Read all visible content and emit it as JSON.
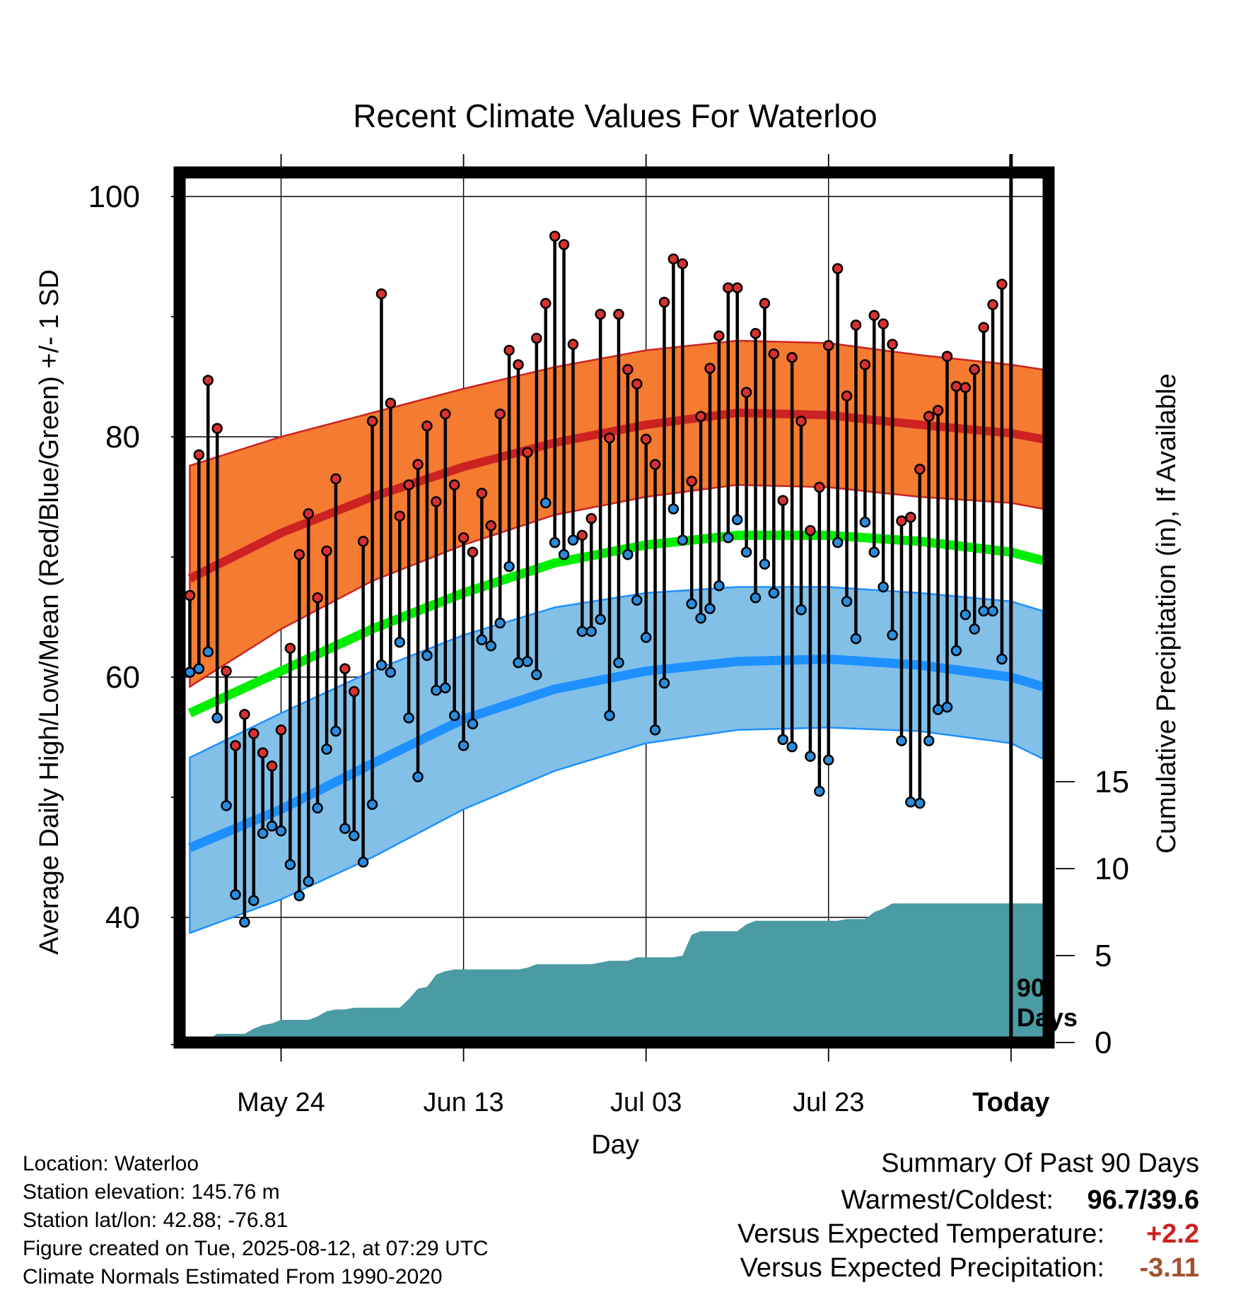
{
  "chart_data": {
    "type": "line",
    "title": "Recent Climate Values For Waterloo",
    "xlabel": "Day",
    "ylabel_left": "Average Daily High/Low/Mean (Red/Blue/Green) +/- 1 SD",
    "ylabel_right": "Cumulative Precipitation (in), If Available",
    "x_tick_labels": [
      "May 24",
      "Jun 13",
      "Jul 03",
      "Jul 23",
      "Today"
    ],
    "x_tick_days": [
      10,
      30,
      50,
      70,
      90
    ],
    "xlim": [
      -0.5,
      93.5
    ],
    "y_left_ticks": [
      "40",
      "60",
      "80",
      "100"
    ],
    "y_left_tick_values": [
      40,
      60,
      80,
      100
    ],
    "ylim_left": [
      30.3,
      102
    ],
    "y_right_ticks": [
      "0",
      "5",
      "10",
      "15"
    ],
    "y_right_tick_values": [
      0,
      5,
      10,
      15
    ],
    "ylim_right": [
      0,
      37
    ],
    "today_marker": {
      "day": 90,
      "label_line1": "90",
      "label_line2": "Days"
    },
    "colors": {
      "high_band": "#f47b30",
      "high_line": "#cc2222",
      "low_band": "#82c0e8",
      "low_line": "#1e90ff",
      "mean_line": "#00ee00",
      "precip": "#4a9ba3",
      "high_marker": "#d93030",
      "low_marker": "#2a8cdc",
      "temp_anomaly": "#cc2222",
      "precip_anomaly": "#a0522d"
    },
    "normals_days": [
      0,
      10,
      20,
      30,
      40,
      50,
      60,
      70,
      80,
      90,
      93.5
    ],
    "normal_high": [
      68.2,
      72.0,
      75.0,
      77.5,
      79.5,
      81.0,
      82.0,
      81.8,
      81.0,
      80.3,
      79.8
    ],
    "normal_high_sd_upper": [
      77.6,
      80.0,
      82.0,
      84.0,
      85.8,
      87.2,
      88.0,
      87.8,
      86.8,
      86.0,
      85.6
    ],
    "normal_high_sd_lower": [
      59.2,
      64.0,
      68.0,
      71.0,
      73.5,
      75.0,
      76.0,
      75.8,
      75.0,
      74.5,
      74.0
    ],
    "normal_mean": [
      57.0,
      60.5,
      64.0,
      67.0,
      69.5,
      71.0,
      71.8,
      71.8,
      71.3,
      70.4,
      69.7
    ],
    "normal_low": [
      45.8,
      49.0,
      52.8,
      56.5,
      59.0,
      60.5,
      61.3,
      61.5,
      61.0,
      60.0,
      59.2
    ],
    "normal_low_sd_upper": [
      53.3,
      57.0,
      60.5,
      63.5,
      65.8,
      67.0,
      67.5,
      67.5,
      67.0,
      66.3,
      65.5
    ],
    "normal_low_sd_lower": [
      38.7,
      41.5,
      45.0,
      49.0,
      52.2,
      54.5,
      55.6,
      55.8,
      55.5,
      54.5,
      53.2
    ],
    "days": [
      0,
      1,
      2,
      3,
      4,
      5,
      6,
      7,
      8,
      9,
      10,
      11,
      12,
      13,
      14,
      15,
      16,
      17,
      18,
      19,
      20,
      21,
      22,
      23,
      24,
      25,
      26,
      27,
      28,
      29,
      30,
      31,
      32,
      33,
      34,
      35,
      36,
      37,
      38,
      39,
      40,
      41,
      42,
      43,
      44,
      45,
      46,
      47,
      48,
      49,
      50,
      51,
      52,
      53,
      54,
      55,
      56,
      57,
      58,
      59,
      60,
      61,
      62,
      63,
      64,
      65,
      66,
      67,
      68,
      69,
      70,
      71,
      72,
      73,
      74,
      75,
      76,
      77,
      78,
      79,
      80,
      81,
      82,
      83,
      84,
      85,
      86,
      87,
      88,
      89
    ],
    "daily_high": [
      66.8,
      78.5,
      84.7,
      80.7,
      60.5,
      54.3,
      56.9,
      55.3,
      53.7,
      52.6,
      55.6,
      62.4,
      70.2,
      73.6,
      66.6,
      70.5,
      76.5,
      60.7,
      58.8,
      71.3,
      81.3,
      91.9,
      82.8,
      73.4,
      76.0,
      77.7,
      80.9,
      74.6,
      81.9,
      76.0,
      71.6,
      70.4,
      75.3,
      72.6,
      81.9,
      87.2,
      86.0,
      78.7,
      88.2,
      91.1,
      96.7,
      96.0,
      87.7,
      71.8,
      73.2,
      90.2,
      79.9,
      90.2,
      85.6,
      84.4,
      79.8,
      77.7,
      91.2,
      94.8,
      94.4,
      76.3,
      81.7,
      85.7,
      88.4,
      92.4,
      92.4,
      83.7,
      88.6,
      91.1,
      86.9,
      74.7,
      86.6,
      81.3,
      72.2,
      75.8,
      87.6,
      94.0,
      83.4,
      89.3,
      86.0,
      90.1,
      89.4,
      87.7,
      73.0,
      73.3,
      77.3,
      81.7,
      82.2,
      86.7,
      84.2,
      84.1,
      85.6,
      89.1,
      91.0,
      92.7
    ],
    "daily_low": [
      60.4,
      60.7,
      62.1,
      56.6,
      49.3,
      41.9,
      39.6,
      41.4,
      47.0,
      47.6,
      47.2,
      44.4,
      41.8,
      43.0,
      49.1,
      54.0,
      55.5,
      47.4,
      46.8,
      44.6,
      49.4,
      61.0,
      60.4,
      62.9,
      56.6,
      51.7,
      61.8,
      58.9,
      59.1,
      56.8,
      54.3,
      56.1,
      63.1,
      62.6,
      64.5,
      69.2,
      61.2,
      61.3,
      60.2,
      74.5,
      71.2,
      70.2,
      71.4,
      63.8,
      63.8,
      64.8,
      56.8,
      61.2,
      70.2,
      66.4,
      63.3,
      55.6,
      59.5,
      74.0,
      71.4,
      66.1,
      64.9,
      65.7,
      67.6,
      71.6,
      73.1,
      70.4,
      66.6,
      69.4,
      67.0,
      54.8,
      54.2,
      65.6,
      53.4,
      50.5,
      53.1,
      71.2,
      66.3,
      63.2,
      72.9,
      70.4,
      67.5,
      63.5,
      54.7,
      49.6,
      49.5,
      54.7,
      57.3,
      57.5,
      62.2,
      65.2,
      64.0,
      65.5,
      65.5,
      61.5
    ],
    "precip_days": [
      2,
      3,
      4,
      5,
      6,
      7,
      8,
      9,
      10,
      11,
      12,
      13,
      14,
      15,
      16,
      17,
      18,
      19,
      20,
      21,
      22,
      23,
      24,
      25,
      26,
      27,
      28,
      29,
      30,
      31,
      32,
      33,
      34,
      35,
      36,
      37,
      38,
      39,
      40,
      41,
      42,
      43,
      44,
      45,
      46,
      47,
      48,
      49,
      50,
      51,
      52,
      53,
      54,
      55,
      56,
      57,
      58,
      59,
      60,
      61,
      62,
      63,
      64,
      65,
      66,
      67,
      68,
      69,
      70,
      71,
      72,
      73,
      74,
      75,
      76,
      77,
      78,
      79,
      80,
      81,
      82,
      83,
      84,
      85,
      86,
      87,
      88,
      89,
      90
    ],
    "cumulative_precip": [
      0.2,
      0.5,
      0.5,
      0.5,
      0.5,
      0.8,
      1.0,
      1.1,
      1.3,
      1.3,
      1.3,
      1.3,
      1.5,
      1.8,
      1.9,
      1.9,
      2.0,
      2.0,
      2.0,
      2.0,
      2.0,
      2.0,
      2.5,
      3.1,
      3.2,
      3.9,
      4.1,
      4.2,
      4.2,
      4.2,
      4.2,
      4.2,
      4.2,
      4.2,
      4.2,
      4.3,
      4.5,
      4.5,
      4.5,
      4.5,
      4.5,
      4.5,
      4.5,
      4.6,
      4.7,
      4.7,
      4.7,
      4.9,
      4.9,
      4.9,
      4.9,
      4.9,
      5.0,
      6.2,
      6.4,
      6.4,
      6.4,
      6.4,
      6.4,
      6.8,
      7.0,
      7.0,
      7.0,
      7.0,
      7.0,
      7.0,
      7.0,
      7.0,
      7.0,
      7.0,
      7.1,
      7.1,
      7.1,
      7.5,
      7.7,
      8.0,
      8.0,
      8.0,
      8.0,
      8.0,
      8.0,
      8.0,
      8.0,
      8.0,
      8.0,
      8.0,
      8.0,
      8.0,
      8.0
    ]
  },
  "footer": {
    "location": "Location: Waterloo",
    "elevation": "Station elevation: 145.76 m",
    "latlon": "Station lat/lon: 42.88; -76.81",
    "created": "Figure created on Tue, 2025-08-12, at 07:29 UTC",
    "normals": "Climate Normals Estimated From 1990-2020"
  },
  "summary": {
    "title": "Summary Of Past 90 Days",
    "warm_cold_label": "Warmest/Coldest:",
    "warm_cold_value": "96.7/39.6",
    "temp_label": "Versus Expected Temperature:",
    "temp_value": "+2.2",
    "precip_label": "Versus Expected Precipitation:",
    "precip_value": "-3.11"
  }
}
